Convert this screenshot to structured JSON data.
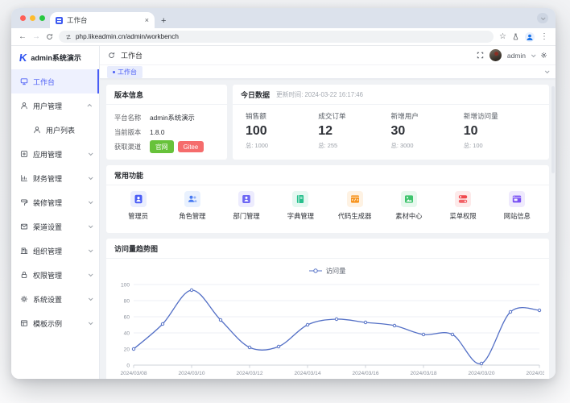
{
  "colors": {
    "accent": "#4a5df5",
    "chart_line": "#5470c6",
    "success_button": "#67c23a",
    "danger_button": "#f56c6c"
  },
  "browser": {
    "tab_title": "工作台",
    "new_tab_label": "+",
    "url": "php.likeadmin.cn/admin/workbench"
  },
  "app": {
    "logo": {
      "mark": "K",
      "text": "admin系统演示"
    },
    "topbar": {
      "breadcrumb": "工作台",
      "username": "admin"
    },
    "tagbar": {
      "active_tag": "工作台"
    },
    "sidebar": {
      "items": [
        {
          "id": "workbench",
          "label": "工作台",
          "icon": "monitor-icon",
          "active": true,
          "chevron": null,
          "sub": false
        },
        {
          "id": "user-management",
          "label": "用户管理",
          "icon": "user-icon",
          "active": false,
          "chevron": "up",
          "sub": false
        },
        {
          "id": "user-list",
          "label": "用户列表",
          "icon": "user-icon",
          "active": false,
          "chevron": null,
          "sub": true
        },
        {
          "id": "application-management",
          "label": "应用管理",
          "icon": "app-icon",
          "active": false,
          "chevron": "down",
          "sub": false
        },
        {
          "id": "finance-management",
          "label": "财务管理",
          "icon": "finance-icon",
          "active": false,
          "chevron": "down",
          "sub": false
        },
        {
          "id": "decoration-management",
          "label": "装修管理",
          "icon": "decoration-icon",
          "active": false,
          "chevron": "down",
          "sub": false
        },
        {
          "id": "channel-settings",
          "label": "渠道设置",
          "icon": "channel-icon",
          "active": false,
          "chevron": "down",
          "sub": false
        },
        {
          "id": "organization-management",
          "label": "组织管理",
          "icon": "organization-icon",
          "active": false,
          "chevron": "down",
          "sub": false
        },
        {
          "id": "auth-management",
          "label": "权限管理",
          "icon": "lock-icon",
          "active": false,
          "chevron": "down",
          "sub": false
        },
        {
          "id": "system-settings",
          "label": "系统设置",
          "icon": "gear-icon",
          "active": false,
          "chevron": "down",
          "sub": false
        },
        {
          "id": "template-demo",
          "label": "模板示例",
          "icon": "template-icon",
          "active": false,
          "chevron": "down",
          "sub": false
        }
      ]
    }
  },
  "cards": {
    "version": {
      "title": "版本信息",
      "rows": [
        {
          "label": "平台名称",
          "value": "admin系统演示"
        },
        {
          "label": "当前版本",
          "value": "1.8.0"
        }
      ],
      "channel_label": "获取渠道",
      "buttons": [
        {
          "id": "official-site",
          "label": "官网",
          "color": "#67c23a"
        },
        {
          "id": "gitee",
          "label": "Gitee",
          "color": "#f56c6c"
        }
      ]
    },
    "today": {
      "title": "今日数据",
      "updated": "更新时间: 2024-03-22 16:17:46",
      "stats": [
        {
          "label": "销售额",
          "value": "100",
          "total": "总: 1000"
        },
        {
          "label": "成交订单",
          "value": "12",
          "total": "总: 255"
        },
        {
          "label": "新增用户",
          "value": "30",
          "total": "总: 3000"
        },
        {
          "label": "新增访问量",
          "value": "10",
          "total": "总: 100"
        }
      ]
    },
    "functions": {
      "title": "常用功能",
      "items": [
        {
          "id": "admin",
          "label": "管理员",
          "icon": "admin-person-icon",
          "color": "#4a5df5",
          "tint": "#eaeefe"
        },
        {
          "id": "role-management",
          "label": "角色管理",
          "icon": "role-people-icon",
          "color": "#477af2",
          "tint": "#e9f1fe"
        },
        {
          "id": "department-management",
          "label": "部门管理",
          "icon": "department-badge-icon",
          "color": "#6d66f4",
          "tint": "#edecfe"
        },
        {
          "id": "dictionary-management",
          "label": "字典管理",
          "icon": "dictionary-book-icon",
          "color": "#27c08d",
          "tint": "#e5f8f1"
        },
        {
          "id": "code-generator",
          "label": "代码生成器",
          "icon": "code-terminal-icon",
          "color": "#f7941e",
          "tint": "#fef2e3"
        },
        {
          "id": "material-center",
          "label": "素材中心",
          "icon": "material-image-icon",
          "color": "#3ec46d",
          "tint": "#e7f8ee"
        },
        {
          "id": "menu-auth",
          "label": "菜单权限",
          "icon": "menu-switches-icon",
          "color": "#f0484d",
          "tint": "#fdeaea"
        },
        {
          "id": "website-info",
          "label": "网站信息",
          "icon": "website-window-icon",
          "color": "#7a52f4",
          "tint": "#efeafd"
        }
      ]
    },
    "trend": {
      "title": "访问量趋势图"
    }
  },
  "chart_data": {
    "type": "line",
    "title": "访问量趋势图",
    "legend": [
      "访问量"
    ],
    "legend_position": "top",
    "smooth": true,
    "grid": true,
    "line_color": "#5470c6",
    "x": [
      "2024/03/08",
      "2024/03/09",
      "2024/03/10",
      "2024/03/11",
      "2024/03/12",
      "2024/03/13",
      "2024/03/14",
      "2024/03/15",
      "2024/03/16",
      "2024/03/17",
      "2024/03/18",
      "2024/03/19",
      "2024/03/20",
      "2024/03/21",
      "2024/03/22"
    ],
    "x_tick_labels": [
      "2024/03/08",
      "2024/03/10",
      "2024/03/12",
      "2024/03/14",
      "2024/03/16",
      "2024/03/18",
      "2024/03/20",
      "2024/03/22"
    ],
    "series": [
      {
        "name": "访问量",
        "values": [
          20,
          51,
          93,
          56,
          22,
          23,
          50,
          57,
          53,
          49,
          38,
          38,
          2,
          66,
          68
        ]
      }
    ],
    "ylim": [
      0,
      100
    ],
    "y_ticks": [
      0,
      20,
      40,
      60,
      80,
      100
    ]
  }
}
